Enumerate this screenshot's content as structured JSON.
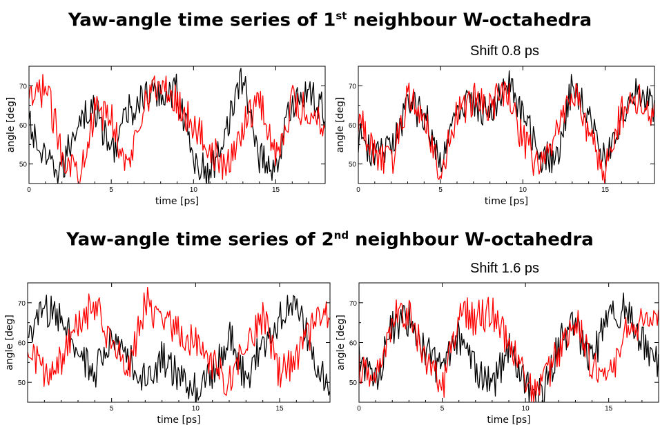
{
  "titles": {
    "first": {
      "pre": "Yaw-angle time series of 1",
      "sup": "st",
      "post": " neighbour W-octahedra"
    },
    "second": {
      "pre": "Yaw-angle time series of 2",
      "sup": "nd",
      "post": " neighbour W-octahedra"
    }
  },
  "shift_labels": {
    "first": "Shift 0.8 ps",
    "second": "Shift 1.6 ps"
  },
  "colors": {
    "black_series": "#000000",
    "red_series": "#ff0000",
    "frame": "#000000"
  },
  "chart_data": [
    {
      "id": "p1",
      "type": "line",
      "xlabel": "time [ps]",
      "ylabel": "angle [deg]",
      "xlim": [
        0,
        18
      ],
      "ylim": [
        45,
        75
      ],
      "xticks": [
        0,
        5,
        10,
        15
      ],
      "yticks": [
        50,
        60,
        70
      ],
      "series": [
        {
          "color": "black",
          "x": [
            0,
            1,
            2,
            3,
            4,
            5,
            6,
            7,
            8,
            9,
            10,
            11,
            12,
            13,
            14,
            15,
            16,
            17,
            18
          ],
          "y": [
            60,
            50,
            48,
            62,
            64,
            53,
            63,
            67,
            68,
            69,
            51,
            47,
            60,
            72,
            52,
            49,
            66,
            68,
            63
          ]
        },
        {
          "color": "red",
          "x": [
            0,
            1,
            2,
            3,
            4,
            5,
            6,
            7,
            8,
            9,
            10,
            11,
            12,
            13,
            14,
            15,
            16,
            17,
            18
          ],
          "y": [
            65,
            70,
            53,
            48,
            63,
            62,
            48,
            67,
            70,
            66,
            60,
            54,
            48,
            60,
            67,
            52,
            66,
            63,
            61
          ]
        }
      ]
    },
    {
      "id": "p2",
      "type": "line",
      "xlabel": "time [ps]",
      "ylabel": "angle [deg]",
      "xlim": [
        0,
        18
      ],
      "ylim": [
        45,
        75
      ],
      "xticks": [
        0,
        5,
        10,
        15
      ],
      "yticks": [
        50,
        60,
        70
      ],
      "series": [
        {
          "color": "black",
          "x": [
            0,
            1,
            2,
            3,
            4,
            5,
            6,
            7,
            8,
            9,
            10,
            11,
            12,
            13,
            14,
            15,
            16,
            17,
            18
          ],
          "y": [
            57,
            52,
            54,
            65,
            63,
            51,
            63,
            66,
            63,
            71,
            63,
            52,
            51,
            70,
            64,
            50,
            63,
            68,
            64
          ]
        },
        {
          "color": "red",
          "x": [
            0,
            1,
            2,
            3,
            4,
            5,
            6,
            7,
            8,
            9,
            10,
            11,
            12,
            13,
            14,
            15,
            16,
            17,
            18
          ],
          "y": [
            62,
            53,
            50,
            67,
            63,
            48,
            62,
            67,
            64,
            70,
            56,
            49,
            58,
            69,
            57,
            48,
            63,
            67,
            63
          ]
        }
      ]
    },
    {
      "id": "p3",
      "type": "line",
      "xlabel": "time [ps]",
      "ylabel": "angle [deg]",
      "xlim": [
        0,
        18
      ],
      "ylim": [
        45,
        75
      ],
      "xticks": [
        5,
        10,
        15
      ],
      "yticks": [
        50,
        60,
        70
      ],
      "series": [
        {
          "color": "black",
          "x": [
            0,
            1,
            2,
            3,
            4,
            5,
            6,
            7,
            8,
            9,
            10,
            11,
            12,
            13,
            14,
            15,
            16,
            17,
            18
          ],
          "y": [
            62,
            68,
            66,
            58,
            52,
            61,
            56,
            50,
            56,
            51,
            48,
            52,
            62,
            50,
            60,
            66,
            70,
            56,
            50
          ]
        },
        {
          "color": "red",
          "x": [
            0,
            1,
            2,
            3,
            4,
            5,
            6,
            7,
            8,
            9,
            10,
            11,
            12,
            13,
            14,
            15,
            16,
            17,
            18
          ],
          "y": [
            58,
            52,
            55,
            64,
            70,
            59,
            54,
            70,
            66,
            62,
            60,
            55,
            50,
            60,
            67,
            52,
            55,
            64,
            68
          ]
        }
      ]
    },
    {
      "id": "p4",
      "type": "line",
      "xlabel": "time [ps]",
      "ylabel": "angle [deg]",
      "xlim": [
        0,
        18
      ],
      "ylim": [
        45,
        75
      ],
      "xticks": [
        0,
        5,
        10,
        15
      ],
      "yticks": [
        50,
        60,
        70
      ],
      "series": [
        {
          "color": "black",
          "x": [
            0,
            1,
            2,
            3,
            4,
            5,
            6,
            7,
            8,
            9,
            10,
            11,
            12,
            13,
            14,
            15,
            16,
            17,
            18
          ],
          "y": [
            57,
            50,
            64,
            66,
            58,
            52,
            62,
            54,
            49,
            58,
            50,
            46,
            60,
            64,
            55,
            68,
            68,
            60,
            55
          ]
        },
        {
          "color": "red",
          "x": [
            0,
            1,
            2,
            3,
            4,
            5,
            6,
            7,
            8,
            9,
            10,
            11,
            12,
            13,
            14,
            15,
            16,
            17,
            18
          ],
          "y": [
            54,
            50,
            66,
            68,
            56,
            48,
            68,
            66,
            68,
            60,
            50,
            48,
            58,
            66,
            54,
            50,
            62,
            66,
            66
          ]
        }
      ]
    }
  ]
}
